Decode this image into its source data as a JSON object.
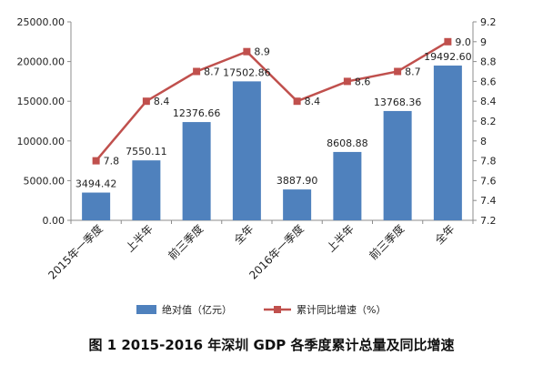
{
  "caption": "图 1   2015-2016 年深圳 GDP 各季度累计总量及同比增速",
  "chart_data": {
    "type": "bar+line",
    "categories": [
      "2015年一季度",
      "上半年",
      "前三季度",
      "全年",
      "2016年一季度",
      "上半年",
      "前三季度",
      "全年"
    ],
    "series": [
      {
        "name": "绝对值（亿元）",
        "type": "bar",
        "axis": "left",
        "color": "#4f81bd",
        "values": [
          3494.42,
          7550.11,
          12376.66,
          17502.86,
          3887.9,
          8608.88,
          13768.36,
          19492.6
        ],
        "labels": [
          "3494.42",
          "7550.11",
          "12376.66",
          "17502.86",
          "3887.90",
          "8608.88",
          "13768.36",
          "19492.60"
        ]
      },
      {
        "name": "累计同比增速（%）",
        "type": "line",
        "axis": "right",
        "color": "#c0504d",
        "values": [
          7.8,
          8.4,
          8.7,
          8.9,
          8.4,
          8.6,
          8.7,
          9.0
        ],
        "labels": [
          "7.8",
          "8.4",
          "8.7",
          "8.9",
          "8.4",
          "8.6",
          "8.7",
          "9.0"
        ]
      }
    ],
    "y_left": {
      "range": [
        0,
        25000
      ],
      "ticks": [
        "0.00",
        "5000.00",
        "10000.00",
        "15000.00",
        "20000.00",
        "25000.00"
      ]
    },
    "y_right": {
      "range": [
        7.2,
        9.2
      ],
      "ticks": [
        "7.2",
        "7.4",
        "7.6",
        "7.8",
        "8",
        "8.2",
        "8.4",
        "8.6",
        "8.8",
        "9",
        "9.2"
      ]
    },
    "legend_position": "bottom",
    "grid": false
  }
}
